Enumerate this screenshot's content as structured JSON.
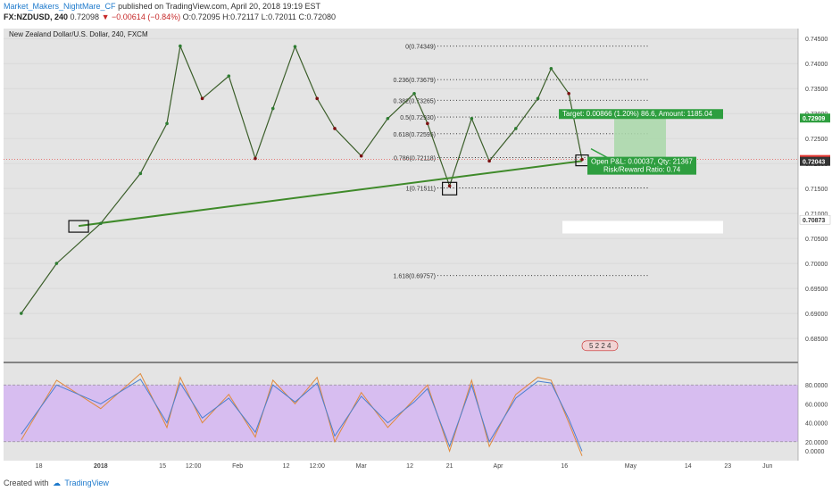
{
  "header": {
    "author": "Market_Makers_NightMare_CF",
    "published_text": "published on TradingView.com, April 20, 2018 19:19 EST",
    "symbol": "FX:NZDUSD, 240",
    "last": "0.72098",
    "change": "−0.00614 (−0.84%)",
    "open": "O:0.72095",
    "high": "H:0.72117",
    "low": "L:0.72011",
    "close": "C:0.72080"
  },
  "chart_data": [
    {
      "type": "line",
      "title": "New Zealand Dollar/U.S. Dollar, 240, FXCM",
      "xlabel": "",
      "ylabel": "",
      "ylim": [
        0.68,
        0.747
      ],
      "grid": true,
      "x_ticks": [
        "18",
        "2018",
        "15",
        "12:00",
        "Feb",
        "12",
        "12:00",
        "Mar",
        "12",
        "21",
        "Apr",
        "16",
        "May",
        "14",
        "23",
        "Jun"
      ],
      "y_ticks": [
        "0.74500",
        "0.74000",
        "0.73500",
        "0.73000",
        "0.72500",
        "0.72000",
        "0.71500",
        "0.71000",
        "0.70500",
        "0.70000",
        "0.69500",
        "0.69000",
        "0.68500"
      ],
      "x": [
        "Dec 14",
        "Dec 22",
        "Jan 01",
        "Jan 10",
        "Jan 16",
        "Jan 19",
        "Jan 24",
        "Jan 30",
        "Feb 05",
        "Feb 09",
        "Feb 14",
        "Feb 19",
        "Feb 23",
        "Mar 01",
        "Mar 07",
        "Mar 13",
        "Mar 16",
        "Mar 21",
        "Mar 26",
        "Mar 30",
        "Apr 05",
        "Apr 10",
        "Apr 13",
        "Apr 17",
        "Apr 20"
      ],
      "series": [
        {
          "values": [
            0.69,
            0.7,
            0.708,
            0.718,
            0.728,
            0.7435,
            0.733,
            0.7375,
            0.721,
            0.731,
            0.7434,
            0.733,
            0.727,
            0.7215,
            0.729,
            0.734,
            0.728,
            0.7155,
            0.729,
            0.7205,
            0.727,
            0.733,
            0.739,
            0.734,
            0.7208
          ]
        }
      ],
      "fibonacci": [
        {
          "label": "0(0.74349)",
          "value": 0.74349
        },
        {
          "label": "0.236(0.73679)",
          "value": 0.73679
        },
        {
          "label": "0.382(0.73265)",
          "value": 0.73265
        },
        {
          "label": "0.5(0.72930)",
          "value": 0.7293
        },
        {
          "label": "0.618(0.72595)",
          "value": 0.72595
        },
        {
          "label": "0.786(0.72118)",
          "value": 0.72118
        },
        {
          "label": "1(0.71511)",
          "value": 0.71511
        },
        {
          "label": "1.618(0.69757)",
          "value": 0.69757
        }
      ],
      "trendline": {
        "from": {
          "x": "Dec 27",
          "y": 0.7075
        },
        "to": {
          "x": "Apr 20",
          "y": 0.7205
        }
      },
      "position": {
        "target_text": "Target: 0.00866 (1.20%) 86.6, Amount: 1185.04",
        "pnl_text": "Open P&L: 0.00037, Qty: 21367",
        "rr_text": "Risk/Reward Ratio: 0.74"
      },
      "price_tags": [
        {
          "label": "0.72909",
          "value": 0.72909,
          "color": "#2e9e3f"
        },
        {
          "label": "0.72080",
          "value": 0.7208,
          "color": "#e53935"
        },
        {
          "label": "0.72043",
          "value": 0.72043,
          "color": "#333333"
        },
        {
          "label": "0.70873",
          "value": 0.70873,
          "color": "#ffffff"
        }
      ],
      "events_badge": "5 2 2 4",
      "colors": {
        "up": "#2e7d32",
        "down": "#7b1010",
        "trendline": "#3f8a2a",
        "last_price": "#e53935",
        "target_zone": "#a9d8a9"
      }
    },
    {
      "type": "line",
      "title": "",
      "ylim": [
        0,
        100
      ],
      "y_ticks": [
        "80.0000",
        "60.0000",
        "40.0000",
        "20.0000",
        "0.0000"
      ],
      "bands": {
        "upper": 80,
        "lower": 20
      },
      "x": [
        "Dec 14",
        "Dec 22",
        "Jan 01",
        "Jan 10",
        "Jan 16",
        "Jan 19",
        "Jan 24",
        "Jan 30",
        "Feb 05",
        "Feb 09",
        "Feb 14",
        "Feb 19",
        "Feb 23",
        "Mar 01",
        "Mar 07",
        "Mar 13",
        "Mar 16",
        "Mar 21",
        "Mar 26",
        "Mar 30",
        "Apr 05",
        "Apr 10",
        "Apr 13",
        "Apr 17",
        "Apr 20"
      ],
      "series": [
        {
          "values": [
            22,
            85,
            55,
            92,
            35,
            88,
            40,
            70,
            25,
            85,
            60,
            88,
            20,
            72,
            35,
            65,
            80,
            10,
            85,
            15,
            70,
            88,
            85,
            40,
            5
          ],
          "color": "#e08a3c"
        },
        {
          "values": [
            28,
            80,
            60,
            86,
            40,
            82,
            45,
            66,
            30,
            80,
            62,
            82,
            26,
            68,
            40,
            62,
            76,
            15,
            80,
            20,
            66,
            84,
            82,
            44,
            10
          ],
          "color": "#4a7fd0"
        }
      ],
      "colors": {
        "band_fill": "#d7bdf0"
      }
    }
  ],
  "footer": {
    "created_with": "Created with",
    "brand": "TradingView"
  }
}
